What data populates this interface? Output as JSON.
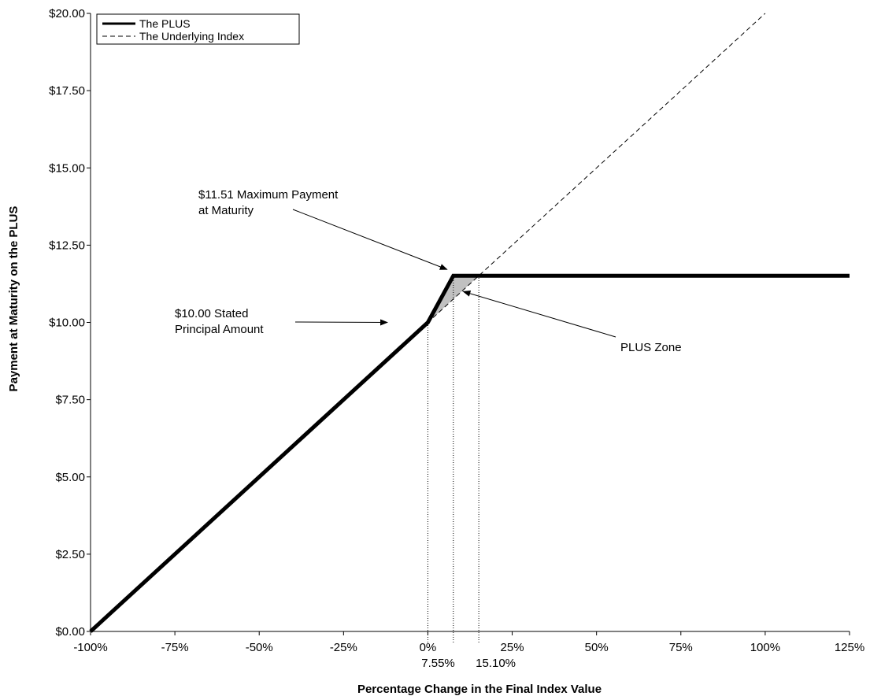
{
  "chart_data": {
    "type": "line",
    "title": "",
    "xlabel": "Percentage Change in the Final Index Value",
    "ylabel": "Payment at Maturity on the PLUS",
    "xlim": [
      -100,
      125
    ],
    "ylim": [
      0,
      20
    ],
    "grid": false,
    "legend_position": "top-left",
    "x_ticks": [
      -100,
      -75,
      -50,
      -25,
      0,
      25,
      50,
      75,
      100,
      125
    ],
    "x_tick_labels": [
      "-100%",
      "-75%",
      "-50%",
      "-25%",
      "0%",
      "25%",
      "50%",
      "75%",
      "100%",
      "125%"
    ],
    "y_ticks": [
      0,
      2.5,
      5,
      7.5,
      10,
      12.5,
      15,
      17.5,
      20
    ],
    "y_tick_labels": [
      "$0.00",
      "$2.50",
      "$5.00",
      "$7.50",
      "$10.00",
      "$12.50",
      "$15.00",
      "$17.50",
      "$20.00"
    ],
    "extra_x_labels": [
      {
        "x": 7.55,
        "label": "7.55%"
      },
      {
        "x": 15.1,
        "label": "15.10%"
      }
    ],
    "series": [
      {
        "name": "The PLUS",
        "style": "solid",
        "color": "#000000",
        "x": [
          -100,
          0,
          7.55,
          125
        ],
        "y": [
          0,
          10,
          11.51,
          11.51
        ]
      },
      {
        "name": "The Underlying Index",
        "style": "dashed",
        "color": "#000000",
        "x": [
          -100,
          0,
          100
        ],
        "y": [
          0,
          10,
          20
        ]
      }
    ],
    "shaded_region": {
      "label": "PLUS Zone",
      "color": "#c0c0c0",
      "x": [
        0,
        7.55,
        15.1
      ],
      "y": [
        10,
        11.51,
        11.51
      ]
    },
    "vertical_markers": [
      0,
      7.55,
      15.1
    ],
    "annotations": [
      {
        "lines": [
          "$11.51 Maximum Payment",
          "at Maturity"
        ],
        "target": [
          7.55,
          11.51
        ]
      },
      {
        "lines": [
          "$10.00 Stated",
          "Principal Amount"
        ],
        "target": [
          -12,
          10
        ]
      },
      {
        "lines": [
          "PLUS Zone"
        ],
        "target": [
          10.5,
          11.0
        ]
      }
    ]
  }
}
